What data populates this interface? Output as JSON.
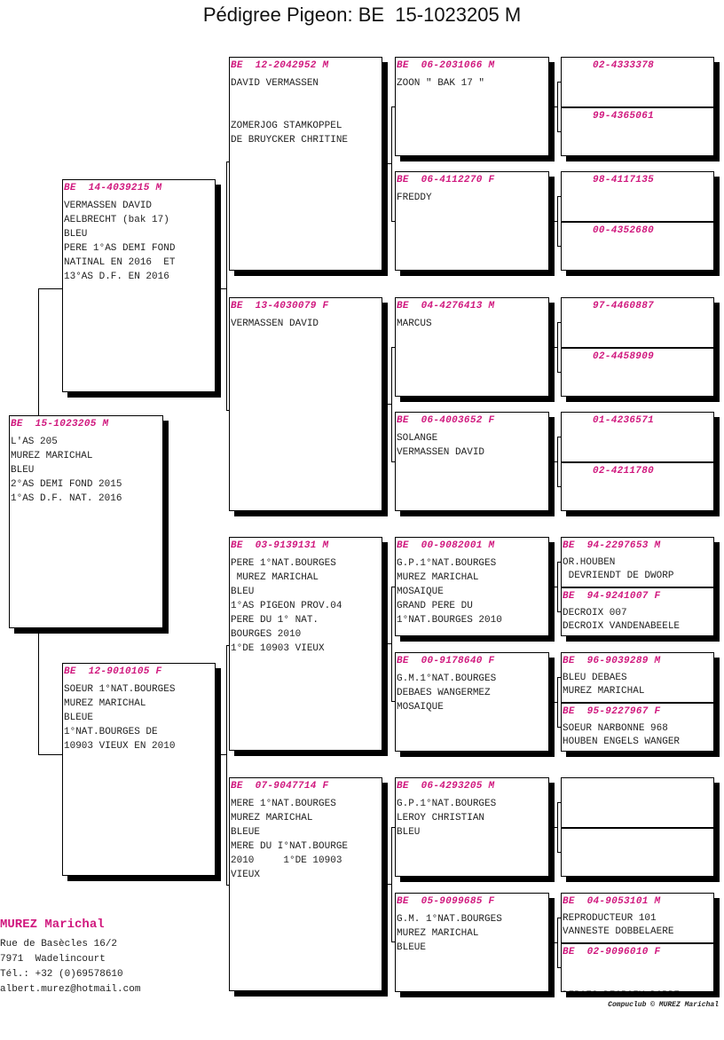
{
  "title": "Pédigree Pigeon: BE  15-1023205 M",
  "accent_color": "#d0187e",
  "subject": {
    "ring": "BE  15-1023205 M",
    "lines": [
      "L'AS 205",
      "MUREZ MARICHAL",
      "BLEU",
      "2°AS DEMI FOND 2015",
      "1°AS D.F. NAT. 2016"
    ]
  },
  "parents": [
    {
      "ring": "BE  14-4039215 M",
      "lines": [
        "VERMASSEN DAVID",
        "AELBRECHT (bak 17)",
        "BLEU",
        "PERE 1°AS DEMI FOND",
        "NATINAL EN 2016  ET",
        "13°AS D.F. EN 2016"
      ]
    },
    {
      "ring": "BE  12-9010105 F",
      "lines": [
        "SOEUR 1°NAT.BOURGES",
        "MUREZ MARICHAL",
        "BLEUE",
        "1°NAT.BOURGES DE",
        "10903 VIEUX EN 2010"
      ]
    }
  ],
  "grandparents": [
    {
      "ring": "BE  12-2042952 M",
      "lines": [
        "DAVID VERMASSEN",
        "",
        "",
        "ZOMERJOG STAMKOPPEL",
        "DE BRUYCKER CHRITINE"
      ]
    },
    {
      "ring": "BE  13-4030079 F",
      "lines": [
        "VERMASSEN DAVID"
      ]
    },
    {
      "ring": "BE  03-9139131 M",
      "lines": [
        "PERE 1°NAT.BOURGES",
        " MUREZ MARICHAL",
        "BLEU",
        "1°AS PIGEON PROV.04",
        "PERE DU 1° NAT.",
        "BOURGES 2010",
        "1°DE 10903 VIEUX"
      ]
    },
    {
      "ring": "BE  07-9047714 F",
      "lines": [
        "MERE 1°NAT.BOURGES",
        "MUREZ MARICHAL",
        "BLEUE",
        "MERE DU I°NAT.BOURGE",
        "2010     1°DE 10903",
        "VIEUX"
      ]
    }
  ],
  "great_grandparents": [
    {
      "ring": "BE  06-2031066 M",
      "lines": [
        "ZOON \" BAK 17 \""
      ]
    },
    {
      "ring": "BE  06-4112270 F",
      "lines": [
        "FREDDY"
      ]
    },
    {
      "ring": "BE  04-4276413 M",
      "lines": [
        "MARCUS"
      ]
    },
    {
      "ring": "BE  06-4003652 F",
      "lines": [
        "SOLANGE",
        "VERMASSEN DAVID"
      ]
    },
    {
      "ring": "BE  00-9082001 M",
      "lines": [
        "G.P.1°NAT.BOURGES",
        "MUREZ MARICHAL",
        "MOSAIQUE",
        "GRAND PERE DU",
        "1°NAT.BOURGES 2010"
      ]
    },
    {
      "ring": "BE  00-9178640 F",
      "lines": [
        "G.M.1°NAT.BOURGES",
        "DEBAES WANGERMEZ",
        "MOSAIQUE"
      ]
    },
    {
      "ring": "BE  06-4293205 M",
      "lines": [
        "G.P.1°NAT.BOURGES",
        "LEROY CHRISTIAN",
        "BLEU"
      ]
    },
    {
      "ring": "BE  05-9099685 F",
      "lines": [
        "G.M. 1°NAT.BOURGES",
        "MUREZ MARICHAL",
        "BLEUE"
      ]
    }
  ],
  "gg_grandparents": [
    {
      "ring": "02-4333378",
      "lines": []
    },
    {
      "ring": "99-4365061",
      "lines": []
    },
    {
      "ring": "98-4117135",
      "lines": []
    },
    {
      "ring": "00-4352680",
      "lines": []
    },
    {
      "ring": "97-4460887",
      "lines": []
    },
    {
      "ring": "02-4458909",
      "lines": []
    },
    {
      "ring": "01-4236571",
      "lines": []
    },
    {
      "ring": "02-4211780",
      "lines": []
    },
    {
      "ring": "BE  94-2297653 M",
      "lines": [
        "OR.HOUBEN",
        " DEVRIENDT DE DWORP"
      ]
    },
    {
      "ring": "BE  94-9241007 F",
      "lines": [
        "DECROIX 007",
        "DECROIX VANDENABEELE"
      ]
    },
    {
      "ring": "BE  96-9039289 M",
      "lines": [
        "BLEU DEBAES",
        "MUREZ MARICHAL"
      ]
    },
    {
      "ring": "BE  95-9227967 F",
      "lines": [
        "SOEUR NARBONNE 968",
        "HOUBEN ENGELS WANGER"
      ]
    },
    {
      "ring": "",
      "lines": []
    },
    {
      "ring": "",
      "lines": []
    },
    {
      "ring": "BE  04-9053101 M",
      "lines": [
        "REPRODUCTEUR 101",
        "VANNESTE DOBBELAERE"
      ]
    },
    {
      "ring": "BE  02-9096010 F",
      "lines": [
        "",
        "",
        "DEBAES DECROIX DOBBE"
      ]
    }
  ],
  "breeder": {
    "name": "MUREZ Marichal",
    "address": "Rue de Basècles 16/2",
    "city": "7971  Wadelincourt",
    "phone": "Tél.: +32 (0)69578610",
    "email": "albert.murez@hotmail.com"
  },
  "footer": "Compuclub © MUREZ Marichal"
}
